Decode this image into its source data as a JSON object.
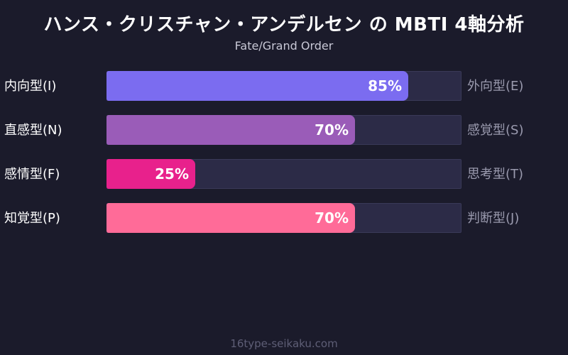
{
  "chart_data": {
    "type": "bar",
    "title": "ハンス・クリスチャン・アンデルセン の MBTI 4軸分析",
    "subtitle": "Fate/Grand Order",
    "axes": [
      {
        "left_label": "内向型(I)",
        "right_label": "外向型(E)",
        "value": 85,
        "value_label": "85%",
        "color": "#7b6cf0"
      },
      {
        "left_label": "直感型(N)",
        "right_label": "感覚型(S)",
        "value": 70,
        "value_label": "70%",
        "color": "#9a5cb8"
      },
      {
        "left_label": "感情型(F)",
        "right_label": "思考型(T)",
        "value": 25,
        "value_label": "25%",
        "color": "#e8218c"
      },
      {
        "left_label": "知覚型(P)",
        "right_label": "判断型(J)",
        "value": 70,
        "value_label": "70%",
        "color": "#ff6b98"
      }
    ],
    "xlim": [
      0,
      100
    ]
  },
  "footer": "16type-seikaku.com"
}
